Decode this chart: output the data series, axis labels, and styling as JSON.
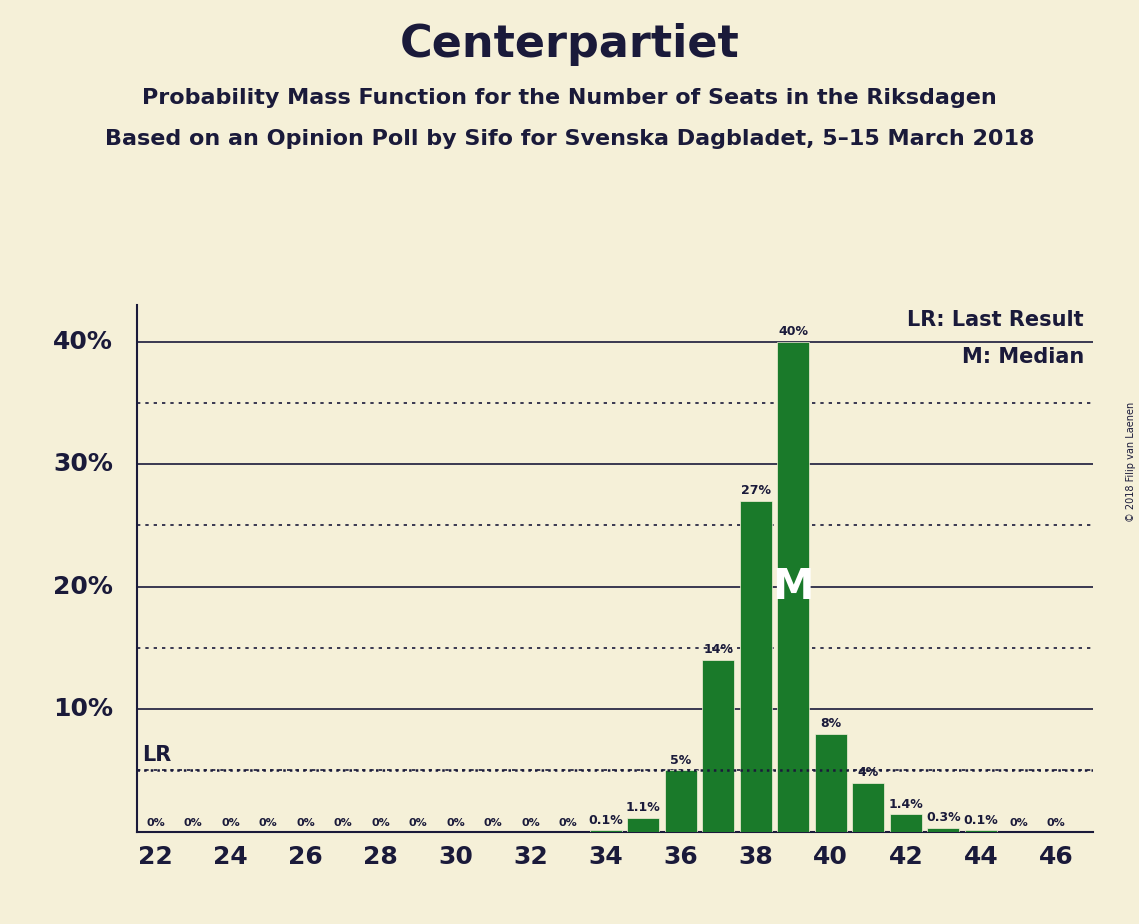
{
  "title": "Centerpartiet",
  "subtitle1": "Probability Mass Function for the Number of Seats in the Riksdagen",
  "subtitle2": "Based on an Opinion Poll by Sifo for Svenska Dagbladet, 5–15 March 2018",
  "copyright": "© 2018 Filip van Laenen",
  "seats": [
    22,
    23,
    24,
    25,
    26,
    27,
    28,
    29,
    30,
    31,
    32,
    33,
    34,
    35,
    36,
    37,
    38,
    39,
    40,
    41,
    42,
    43,
    44,
    45,
    46
  ],
  "probabilities": [
    0.0,
    0.0,
    0.0,
    0.0,
    0.0,
    0.0,
    0.0,
    0.0,
    0.0,
    0.0,
    0.0,
    0.0,
    0.1,
    1.1,
    5.0,
    14.0,
    27.0,
    40.0,
    8.0,
    4.0,
    1.4,
    0.3,
    0.1,
    0.0,
    0.0
  ],
  "bar_color": "#1a7a2a",
  "bar_edge_color": "#f5f0d8",
  "background_color": "#f5f0d8",
  "text_color": "#1a1a3a",
  "lr_value": 5.0,
  "median_seat": 39,
  "xlim": [
    21.5,
    47.0
  ],
  "ylim": [
    0,
    43
  ],
  "major_yticks": [
    10,
    20,
    30,
    40
  ],
  "dotted_yticks": [
    5,
    15,
    25,
    35
  ],
  "xtick_positions": [
    22,
    24,
    26,
    28,
    30,
    32,
    34,
    36,
    38,
    40,
    42,
    44,
    46
  ],
  "figsize": [
    11.39,
    9.24
  ],
  "dpi": 100,
  "title_fontsize": 32,
  "subtitle_fontsize": 16,
  "ytick_fontsize": 18,
  "xtick_fontsize": 18,
  "bar_label_fontsize": 9,
  "legend_fontsize": 15,
  "lr_label_fontsize": 15
}
